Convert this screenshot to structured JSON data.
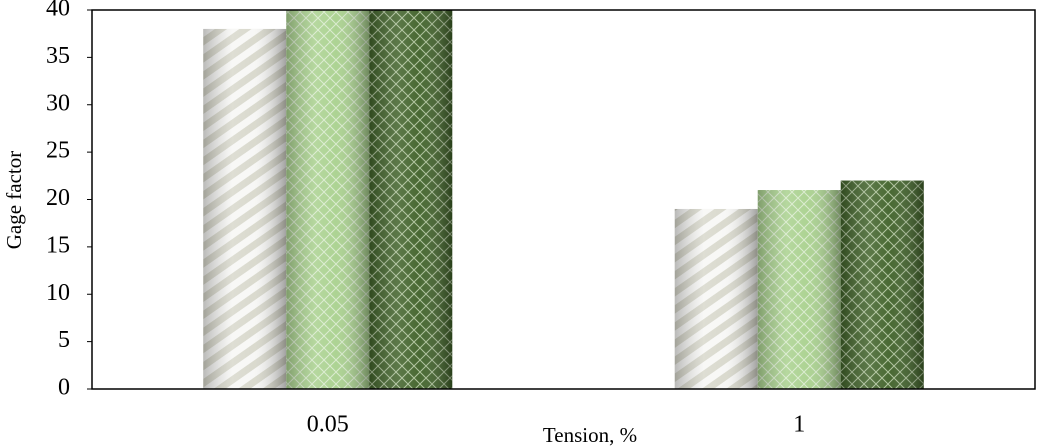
{
  "chart_data": {
    "type": "bar",
    "x_label": "Tension, %",
    "y_label": "Gage factor",
    "categories": [
      "0.05",
      "1"
    ],
    "series": [
      {
        "color": "#d8d8cc",
        "values": [
          38,
          19
        ]
      },
      {
        "color": "#a9d18e",
        "values": [
          40,
          21
        ]
      },
      {
        "color": "#3f6128",
        "values": [
          40,
          22
        ]
      }
    ],
    "ylim": [
      0,
      40
    ],
    "yticks": [
      0,
      5,
      10,
      15,
      20,
      25,
      30,
      35,
      40
    ],
    "grid": false
  }
}
